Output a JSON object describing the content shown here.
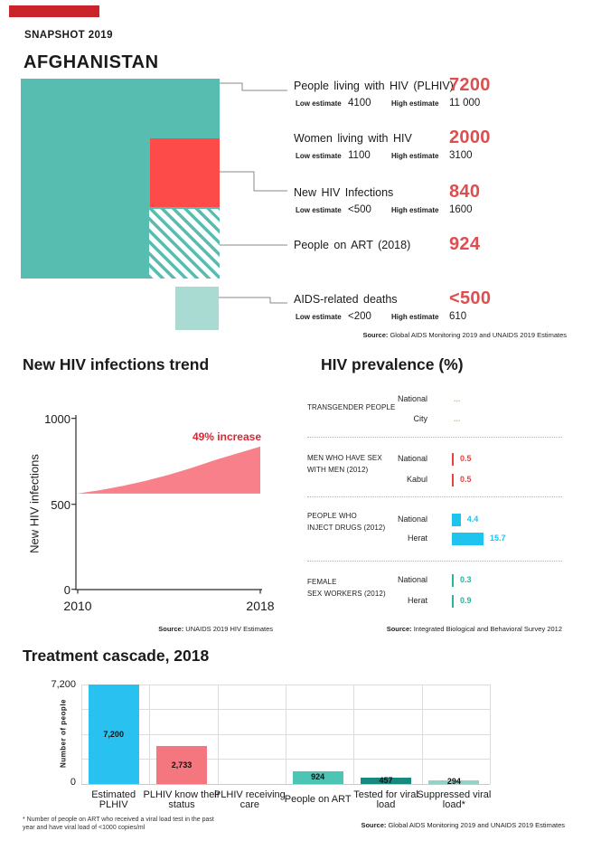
{
  "header": {
    "snapshot": "SNAPSHOT 2019",
    "country": "AFGHANISTAN"
  },
  "colors": {
    "teal": "#56bdb0",
    "red_square": "#fd4b4a",
    "light_teal": "#a9dbd2",
    "stat_value_red": "#dd4f4f",
    "trend_area": "#f8808a",
    "trend_note_red": "#e5212e",
    "cascade_cyan": "#29c2f0",
    "cascade_salmon": "#f4767e",
    "cascade_teal": "#4cc5b4",
    "cascade_dark_teal": "#17897f",
    "cascade_light_teal": "#90d2c6",
    "msm_red": "#e8423c",
    "pwid_cyan": "#1ec3ee",
    "fsw_teal": "#2db2a0",
    "tg_yellow": "#cfc45e"
  },
  "stats": {
    "low_label": "Low estimate",
    "high_label": "High estimate",
    "rows": [
      {
        "label": "People living with HIV (PLHIV)",
        "value": "7200",
        "low": "4100",
        "high": "11 000"
      },
      {
        "label": "Women living with HIV",
        "value": "2000",
        "low": "1100",
        "high": "3100"
      },
      {
        "label": "New HIV Infections",
        "value": "840",
        "low": "<500",
        "high": "1600"
      },
      {
        "label": "People on ART (2018)",
        "value": "924"
      },
      {
        "label": "AIDS-related deaths",
        "value": "<500",
        "low": "<200",
        "high": "610"
      }
    ],
    "source_label": "Source:",
    "source_text": " Global AIDS Monitoring 2019 and UNAIDS 2019 Estimates"
  },
  "chart_data": [
    {
      "type": "area",
      "title": "New HIV infections trend",
      "ylabel": "New HIV infections",
      "x": [
        2010,
        2011,
        2012,
        2013,
        2014,
        2015,
        2016,
        2017,
        2018
      ],
      "values": [
        560,
        580,
        605,
        635,
        670,
        710,
        755,
        795,
        835
      ],
      "baseline": 560,
      "ylim": [
        0,
        1000
      ],
      "yticks": [
        "1000",
        "500",
        "0"
      ],
      "xticks": [
        "2010",
        "2018"
      ],
      "annotation": "49% increase",
      "source_label": "Source:",
      "source_text": " UNAIDS 2019 HIV Estimates"
    },
    {
      "type": "bar",
      "title": "HIV prevalence (%)",
      "unit": "percent",
      "groups": [
        {
          "label_lines": [
            "TRANSGENDER PEOPLE"
          ],
          "color_key": "tg_yellow",
          "rows": [
            {
              "site": "National",
              "display": "..."
            },
            {
              "site": "City",
              "display": "..."
            }
          ]
        },
        {
          "label_lines": [
            "MEN WHO HAVE SEX",
            "WITH MEN (2012)"
          ],
          "color_key": "msm_red",
          "rows": [
            {
              "site": "National",
              "value": 0.5,
              "display": "0.5"
            },
            {
              "site": "Kabul",
              "value": 0.5,
              "display": "0.5"
            }
          ]
        },
        {
          "label_lines": [
            "PEOPLE WHO",
            "INJECT DRUGS (2012)"
          ],
          "color_key": "pwid_cyan",
          "rows": [
            {
              "site": "National",
              "value": 4.4,
              "display": "4.4"
            },
            {
              "site": "Herat",
              "value": 15.7,
              "display": "15.7"
            }
          ]
        },
        {
          "label_lines": [
            "FEMALE",
            "SEX WORKERS (2012)"
          ],
          "color_key": "fsw_teal",
          "rows": [
            {
              "site": "National",
              "value": 0.3,
              "display": "0.3"
            },
            {
              "site": "Herat",
              "value": 0.9,
              "display": "0.9"
            }
          ]
        }
      ],
      "source_label": "Source:",
      "source_text": " Integrated Biological and Behavioral Survey 2012"
    },
    {
      "type": "bar",
      "title": "Treatment cascade, 2018",
      "ylabel": "Number of people",
      "ymax": 7200,
      "yticks": [
        "7,200",
        "0"
      ],
      "categories": [
        "Estimated PLHIV",
        "PLHIV know their status",
        "PLHIV receiving care",
        "People on ART",
        "Tested for viral load",
        "Suppressed viral load*"
      ],
      "category_lines": [
        [
          "Estimated",
          "PLHIV"
        ],
        [
          "PLHIV know their",
          "status"
        ],
        [
          "PLHIV receiving",
          "care"
        ],
        [
          "People on ART"
        ],
        [
          "Tested for viral",
          "load"
        ],
        [
          "Suppressed viral",
          "load*"
        ]
      ],
      "values": [
        7200,
        2733,
        null,
        924,
        457,
        294
      ],
      "bar_labels": [
        "7,200",
        "2,733",
        "",
        "924",
        "457",
        "294"
      ],
      "color_keys": [
        "cascade_cyan",
        "cascade_salmon",
        null,
        "cascade_teal",
        "cascade_dark_teal",
        "cascade_light_teal"
      ],
      "footnote_lines": [
        "* Number of people on ART who received a viral load test in the past",
        "year and have viral load of <1000 copies/ml"
      ],
      "source_label": "Source:",
      "source_text": " Global AIDS Monitoring 2019 and UNAIDS 2019 Estimates"
    }
  ]
}
